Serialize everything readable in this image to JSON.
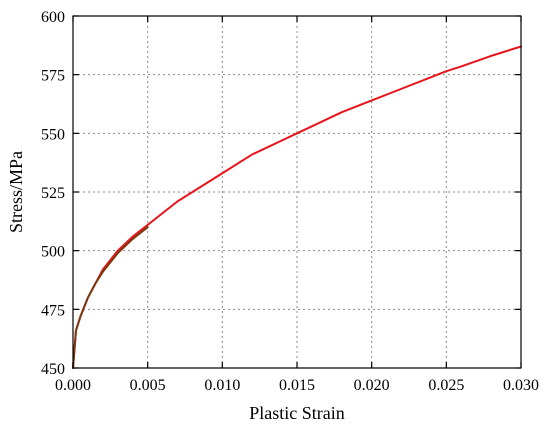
{
  "chart_data": {
    "type": "line",
    "title": "",
    "xlabel": "Plastic Strain",
    "ylabel": "Stress/MPa",
    "xlim": [
      0.0,
      0.03
    ],
    "ylim": [
      450,
      600
    ],
    "x_ticks": [
      "0.000",
      "0.005",
      "0.010",
      "0.015",
      "0.020",
      "0.025",
      "0.030"
    ],
    "y_ticks": [
      "450",
      "475",
      "500",
      "525",
      "550",
      "575",
      "600"
    ],
    "grid": true,
    "legend": "none",
    "series": [
      {
        "color": "#e8141c",
        "x": [
          0.0,
          0.0002,
          0.0005,
          0.001,
          0.002,
          0.003,
          0.004,
          0.005,
          0.006,
          0.007,
          0.008,
          0.009,
          0.01,
          0.012,
          0.014,
          0.015,
          0.016,
          0.018,
          0.02,
          0.022,
          0.024,
          0.025,
          0.026,
          0.028,
          0.03
        ],
        "y": [
          450,
          466,
          472,
          480,
          492,
          500,
          506,
          511,
          516,
          521,
          525,
          529,
          533,
          541,
          547,
          550,
          553,
          559,
          564,
          569,
          574,
          576.5,
          578.5,
          583,
          587
        ]
      },
      {
        "color": "#7a3a10",
        "x": [
          0.0,
          0.0002,
          0.0005,
          0.001,
          0.0015,
          0.002,
          0.003,
          0.004,
          0.005
        ],
        "y": [
          450,
          466,
          472,
          480,
          486,
          491,
          499,
          505,
          510
        ]
      }
    ]
  }
}
